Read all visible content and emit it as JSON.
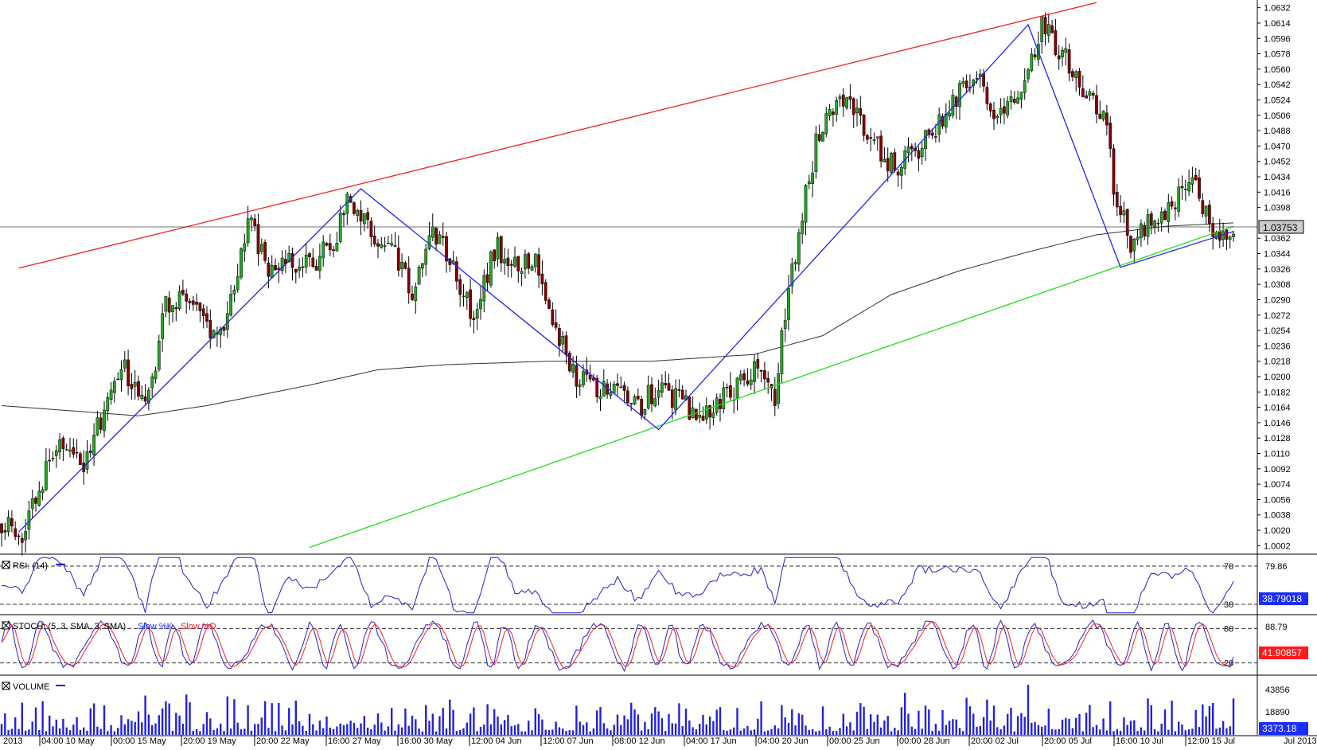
{
  "colors": {
    "background": "#ffffff",
    "frame": "#000000",
    "candle_up": "#22aa22",
    "candle_down": "#880000",
    "ma_line": "#333333",
    "zigzag": "#2222ee",
    "upper_trend": "#ee2222",
    "lower_trend": "#22dd22",
    "indicator_line": "#2222cc",
    "stoch_d": "#ee2222",
    "volume": "#2222dd",
    "price_box_bg": "#cccccc",
    "label_blue": "#1a2cff",
    "label_red": "#ff1a1a"
  },
  "chart_data": [
    {
      "type": "candlestick",
      "y_axis": {
        "ylim": [
          0.9993,
          1.0641
        ],
        "tick_labels": [
          "1.0632",
          "1.0614",
          "1.0596",
          "1.0578",
          "1.0560",
          "1.0542",
          "1.0524",
          "1.0506",
          "1.0488",
          "1.0470",
          "1.0452",
          "1.0434",
          "1.0416",
          "1.0398",
          "1.0362",
          "1.0344",
          "1.0326",
          "1.0308",
          "1.0290",
          "1.0272",
          "1.0254",
          "1.0236",
          "1.0218",
          "1.0200",
          "1.0182",
          "1.0164",
          "1.0146",
          "1.0128",
          "1.0110",
          "1.0092",
          "1.0074",
          "1.0056",
          "1.0038",
          "1.0020",
          "1.0002"
        ],
        "current_price": "1.03753",
        "current_value": 1.03753
      },
      "x_axis": {
        "labels": [
          "2013",
          "04:00 10 May",
          "00:00 15 May",
          "20:00 19 May",
          "20:00 22 May",
          "16:00 27 May",
          "16:00 30 May",
          "12:00 04 Jun",
          "12:00 07 Jun",
          "08:00 12 Jun",
          "04:00 17 Jun",
          "04:00 20 Jun",
          "00:00 25 Jun",
          "00:00 28 Jun",
          "20:00 02 Jul",
          "20:00 05 Jul",
          "16:00 10 Jul",
          "12:00 15 Jul",
          "Jul 2013"
        ]
      },
      "close_path": [
        [
          0,
          1.003
        ],
        [
          6,
          1.002
        ],
        [
          12,
          1.008
        ],
        [
          18,
          1.012
        ],
        [
          24,
          1.01
        ],
        [
          30,
          1.016
        ],
        [
          36,
          1.021
        ],
        [
          42,
          1.016
        ],
        [
          48,
          1.028
        ],
        [
          54,
          1.029
        ],
        [
          60,
          1.025
        ],
        [
          66,
          1.027
        ],
        [
          72,
          1.039
        ],
        [
          78,
          1.032
        ],
        [
          84,
          1.034
        ],
        [
          90,
          1.033
        ],
        [
          96,
          1.035
        ],
        [
          102,
          1.041
        ],
        [
          108,
          1.037
        ],
        [
          114,
          1.035
        ],
        [
          120,
          1.03
        ],
        [
          126,
          1.037
        ],
        [
          132,
          1.033
        ],
        [
          138,
          1.027
        ],
        [
          144,
          1.035
        ],
        [
          150,
          1.034
        ],
        [
          156,
          1.033
        ],
        [
          162,
          1.026
        ],
        [
          168,
          1.02
        ],
        [
          174,
          1.018
        ],
        [
          180,
          1.019
        ],
        [
          186,
          1.016
        ],
        [
          192,
          1.019
        ],
        [
          198,
          1.017
        ],
        [
          204,
          1.015
        ],
        [
          210,
          1.017
        ],
        [
          216,
          1.019
        ],
        [
          222,
          1.022
        ],
        [
          226,
          1.018
        ],
        [
          230,
          1.03
        ],
        [
          234,
          1.039
        ],
        [
          238,
          1.047
        ],
        [
          244,
          1.053
        ],
        [
          250,
          1.051
        ],
        [
          256,
          1.047
        ],
        [
          262,
          1.044
        ],
        [
          268,
          1.047
        ],
        [
          274,
          1.05
        ],
        [
          280,
          1.053
        ],
        [
          286,
          1.055
        ],
        [
          292,
          1.05
        ],
        [
          298,
          1.053
        ],
        [
          304,
          1.061
        ],
        [
          310,
          1.058
        ],
        [
          316,
          1.054
        ],
        [
          322,
          1.051
        ],
        [
          326,
          1.04
        ],
        [
          330,
          1.036
        ],
        [
          336,
          1.038
        ],
        [
          342,
          1.04
        ],
        [
          348,
          1.043
        ],
        [
          354,
          1.037
        ],
        [
          360,
          1.0375
        ]
      ],
      "moving_average": [
        [
          0,
          1.0166
        ],
        [
          40,
          1.0154
        ],
        [
          60,
          1.0166
        ],
        [
          90,
          1.019
        ],
        [
          110,
          1.0208
        ],
        [
          130,
          1.0214
        ],
        [
          160,
          1.0218
        ],
        [
          190,
          1.0218
        ],
        [
          220,
          1.0226
        ],
        [
          240,
          1.0248
        ],
        [
          260,
          1.0296
        ],
        [
          280,
          1.0324
        ],
        [
          300,
          1.0346
        ],
        [
          320,
          1.0366
        ],
        [
          340,
          1.0376
        ],
        [
          360,
          1.038
        ]
      ],
      "zigzag": [
        [
          5,
          1.0018
        ],
        [
          105,
          1.042
        ],
        [
          192,
          1.0138
        ],
        [
          300,
          1.0612
        ],
        [
          327,
          1.0328
        ],
        [
          360,
          1.037
        ]
      ],
      "upper_trendline": [
        [
          5,
          1.0327
        ],
        [
          320,
          1.0638
        ]
      ],
      "lower_trendline": [
        [
          90,
          1.0
        ],
        [
          360,
          1.0376
        ]
      ]
    },
    {
      "type": "line",
      "name": "RSI",
      "header": "RSI: (14)",
      "levels": [
        "70",
        "30"
      ],
      "current_value": "38.79018",
      "ylim": [
        20,
        80
      ],
      "axis_tick_labels": [
        "79.86"
      ]
    },
    {
      "type": "line",
      "name": "STOCH",
      "header": "STOCH: (5, 3, SMA, 3, SMA)",
      "series": [
        {
          "name": "Slow %K"
        },
        {
          "name": "Slow %D"
        }
      ],
      "levels": [
        "80",
        "20"
      ],
      "current_value": "41.90857",
      "ylim": [
        0,
        100
      ],
      "axis_tick_labels": [
        "88.79"
      ]
    },
    {
      "type": "bar",
      "name": "VOLUME",
      "header": "VOLUME",
      "current_value": "3373.18",
      "ylim": [
        0,
        50000
      ],
      "axis_tick_labels": [
        "43856",
        "18890"
      ]
    }
  ]
}
